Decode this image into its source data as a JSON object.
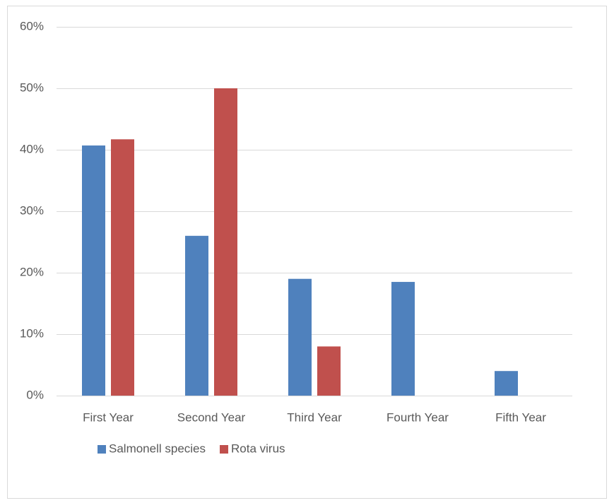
{
  "chart_data": {
    "type": "bar",
    "categories": [
      "First Year",
      "Second Year",
      "Third Year",
      "Fourth Year",
      "Fifth Year"
    ],
    "series": [
      {
        "name": "Salmonell species",
        "color": "#4f81bd",
        "values": [
          40.7,
          26,
          19,
          18.5,
          4
        ]
      },
      {
        "name": "Rota virus",
        "color": "#c0504d",
        "values": [
          41.7,
          50,
          8,
          0,
          0
        ]
      }
    ],
    "ylim": [
      0,
      60
    ],
    "yticks": [
      {
        "value": 0,
        "label": "0%"
      },
      {
        "value": 10,
        "label": "10%"
      },
      {
        "value": 20,
        "label": "20%"
      },
      {
        "value": 30,
        "label": "30%"
      },
      {
        "value": 40,
        "label": "40%"
      },
      {
        "value": 50,
        "label": "50%"
      },
      {
        "value": 60,
        "label": "60%"
      }
    ],
    "grid": true,
    "legend": "bottom"
  }
}
